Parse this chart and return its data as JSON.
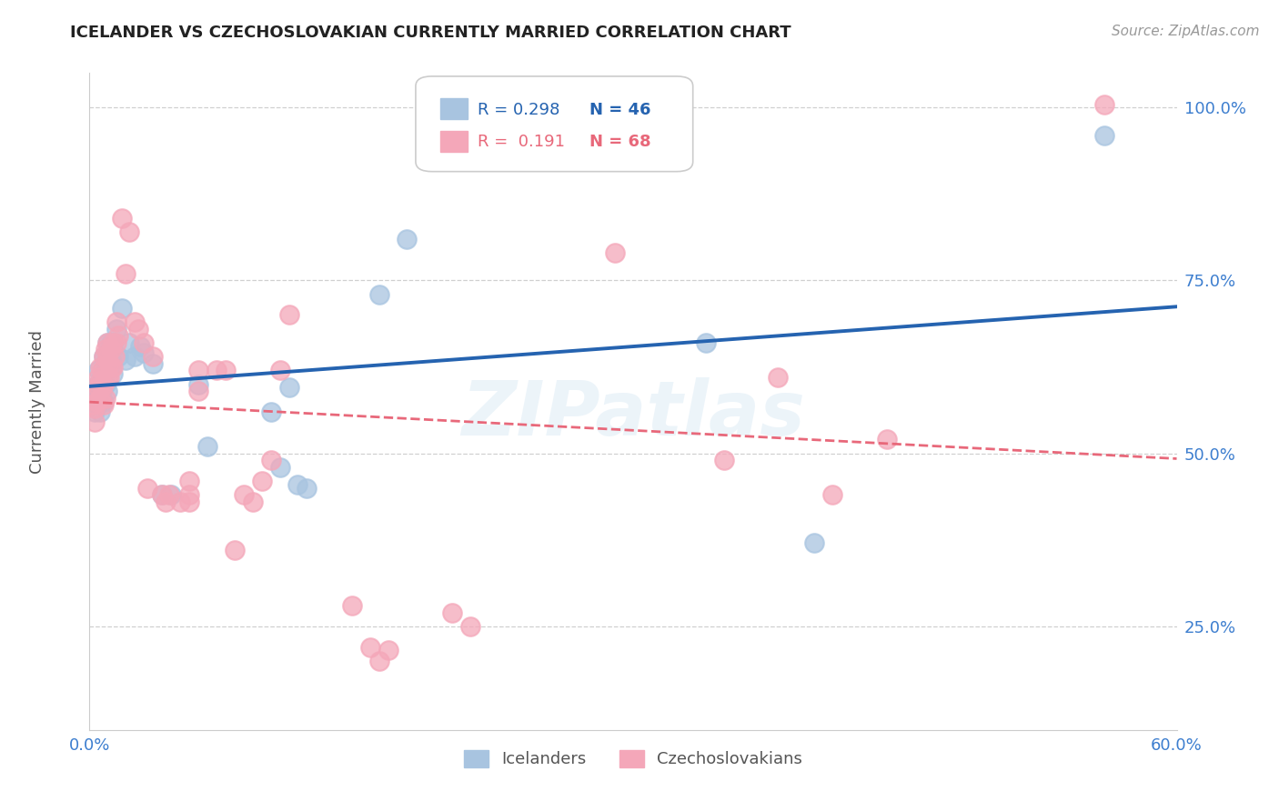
{
  "title": "ICELANDER VS CZECHOSLOVAKIAN CURRENTLY MARRIED CORRELATION CHART",
  "source": "Source: ZipAtlas.com",
  "ylabel_label": "Currently Married",
  "xlim": [
    0.0,
    0.6
  ],
  "ylim": [
    0.1,
    1.05
  ],
  "blue_color": "#a8c4e0",
  "pink_color": "#f4a7b9",
  "blue_line_color": "#2563b0",
  "pink_line_color": "#e8687a",
  "tick_color": "#3d7ecf",
  "grid_color": "#d0d0d0",
  "watermark": "ZIPatlas",
  "blue_r": "0.298",
  "blue_n": "46",
  "pink_r": "0.191",
  "pink_n": "68",
  "legend_blue": "Icelanders",
  "legend_pink": "Czechoslovakians",
  "blue_scatter_x": [
    0.002,
    0.003,
    0.003,
    0.005,
    0.005,
    0.006,
    0.006,
    0.006,
    0.007,
    0.007,
    0.008,
    0.008,
    0.009,
    0.009,
    0.01,
    0.01,
    0.01,
    0.011,
    0.011,
    0.012,
    0.012,
    0.013,
    0.013,
    0.015,
    0.016,
    0.018,
    0.02,
    0.022,
    0.025,
    0.028,
    0.03,
    0.035,
    0.04,
    0.045,
    0.06,
    0.065,
    0.1,
    0.105,
    0.11,
    0.115,
    0.12,
    0.16,
    0.175,
    0.34,
    0.4,
    0.56
  ],
  "blue_scatter_y": [
    0.595,
    0.58,
    0.56,
    0.62,
    0.6,
    0.59,
    0.575,
    0.56,
    0.61,
    0.59,
    0.64,
    0.575,
    0.62,
    0.6,
    0.66,
    0.64,
    0.59,
    0.64,
    0.625,
    0.66,
    0.635,
    0.66,
    0.615,
    0.68,
    0.64,
    0.71,
    0.635,
    0.66,
    0.64,
    0.655,
    0.645,
    0.63,
    0.44,
    0.44,
    0.6,
    0.51,
    0.56,
    0.48,
    0.595,
    0.455,
    0.45,
    0.73,
    0.81,
    0.66,
    0.37,
    0.96
  ],
  "pink_scatter_x": [
    0.002,
    0.003,
    0.003,
    0.004,
    0.004,
    0.005,
    0.005,
    0.006,
    0.006,
    0.006,
    0.007,
    0.007,
    0.008,
    0.008,
    0.008,
    0.009,
    0.009,
    0.01,
    0.01,
    0.01,
    0.011,
    0.011,
    0.012,
    0.012,
    0.013,
    0.013,
    0.014,
    0.015,
    0.015,
    0.016,
    0.018,
    0.02,
    0.022,
    0.025,
    0.027,
    0.03,
    0.032,
    0.035,
    0.04,
    0.042,
    0.044,
    0.05,
    0.055,
    0.055,
    0.055,
    0.06,
    0.06,
    0.07,
    0.075,
    0.08,
    0.085,
    0.09,
    0.095,
    0.1,
    0.105,
    0.11,
    0.145,
    0.155,
    0.16,
    0.165,
    0.2,
    0.21,
    0.29,
    0.35,
    0.38,
    0.41,
    0.44,
    0.56
  ],
  "pink_scatter_y": [
    0.57,
    0.565,
    0.545,
    0.59,
    0.575,
    0.61,
    0.595,
    0.625,
    0.605,
    0.58,
    0.62,
    0.595,
    0.64,
    0.6,
    0.57,
    0.65,
    0.58,
    0.66,
    0.64,
    0.61,
    0.63,
    0.61,
    0.65,
    0.625,
    0.66,
    0.625,
    0.64,
    0.69,
    0.66,
    0.67,
    0.84,
    0.76,
    0.82,
    0.69,
    0.68,
    0.66,
    0.45,
    0.64,
    0.44,
    0.43,
    0.44,
    0.43,
    0.44,
    0.46,
    0.43,
    0.62,
    0.59,
    0.62,
    0.62,
    0.36,
    0.44,
    0.43,
    0.46,
    0.49,
    0.62,
    0.7,
    0.28,
    0.22,
    0.2,
    0.215,
    0.27,
    0.25,
    0.79,
    0.49,
    0.61,
    0.44,
    0.52,
    1.005
  ]
}
